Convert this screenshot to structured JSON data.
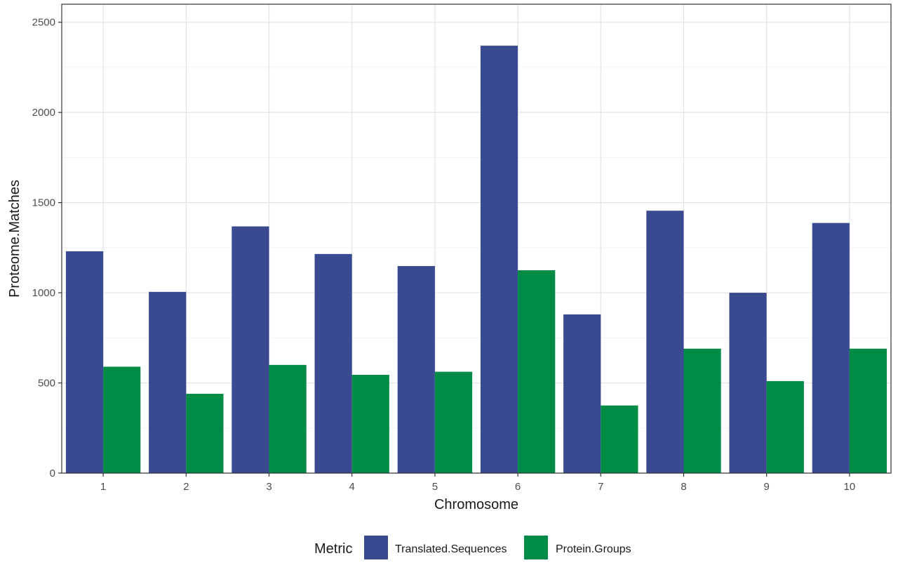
{
  "chart_data": {
    "type": "bar",
    "xlabel": "Chromosome",
    "ylabel": "Proteome.Matches",
    "categories": [
      "1",
      "2",
      "3",
      "4",
      "5",
      "6",
      "7",
      "8",
      "9",
      "10"
    ],
    "ylim": [
      0,
      2600
    ],
    "yticks": [
      0,
      500,
      1000,
      1500,
      2000,
      2500
    ],
    "grid": true,
    "legend_position": "bottom",
    "legend_title": "Metric",
    "series": [
      {
        "name": "Translated.Sequences",
        "color": "#3a4a91",
        "values": [
          1230,
          1005,
          1368,
          1215,
          1148,
          2370,
          880,
          1455,
          1000,
          1387
        ]
      },
      {
        "name": "Protein.Groups",
        "color": "#008c47",
        "values": [
          590,
          440,
          600,
          545,
          562,
          1125,
          375,
          690,
          510,
          690
        ]
      }
    ]
  }
}
